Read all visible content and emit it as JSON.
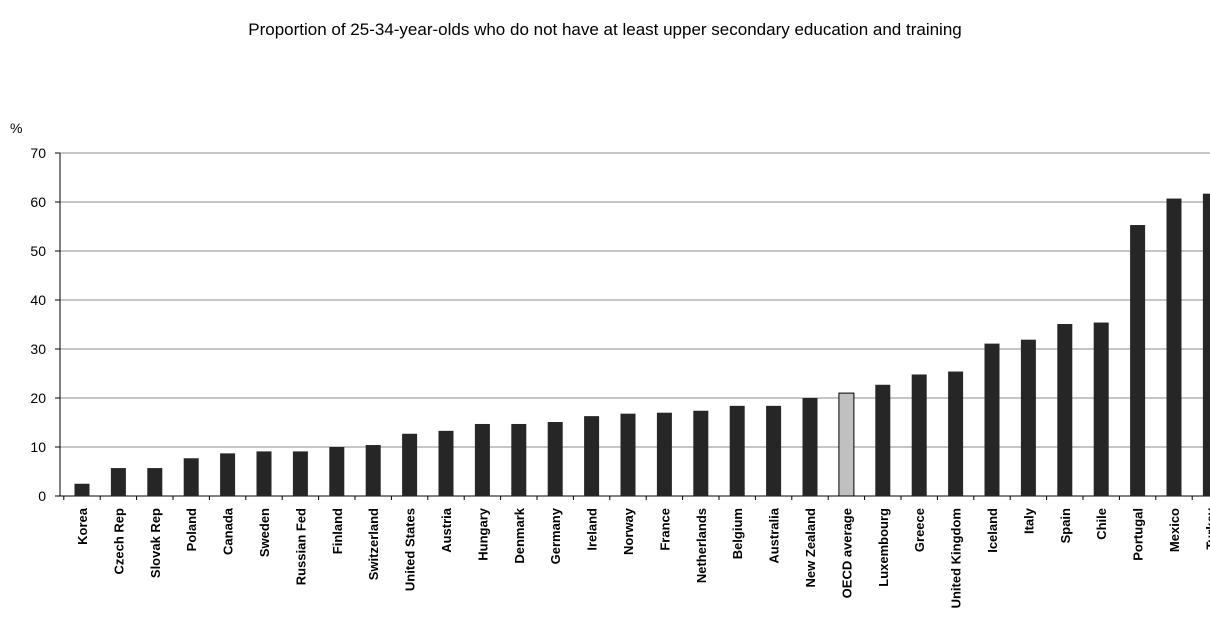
{
  "chart_data": {
    "type": "bar",
    "title": "Proportion of 25-34-year-olds who do not have at least upper secondary education and training",
    "ylabel": "%",
    "ylim": [
      0,
      70
    ],
    "yticks": [
      0,
      10,
      20,
      30,
      40,
      50,
      60,
      70
    ],
    "grid": true,
    "categories": [
      "Korea",
      "Czech Rep",
      "Slovak Rep",
      "Poland",
      "Canada",
      "Sweden",
      "Russian Fed",
      "Finland",
      "Switzerland",
      "United States",
      "Austria",
      "Hungary",
      "Denmark",
      "Germany",
      "Ireland",
      "Norway",
      "France",
      "Netherlands",
      "Belgium",
      "Australia",
      "New Zealand",
      "OECD average",
      "Luxembourg",
      "Greece",
      "United Kingdom",
      "Iceland",
      "Italy",
      "Spain",
      "Chile",
      "Portugal",
      "Mexico",
      "Turkey"
    ],
    "values": [
      2.5,
      5.7,
      5.7,
      7.7,
      8.7,
      9.1,
      9.1,
      10.0,
      10.4,
      12.7,
      13.3,
      14.7,
      14.7,
      15.1,
      16.3,
      16.8,
      17.0,
      17.4,
      18.4,
      18.4,
      20.0,
      21.0,
      22.7,
      24.8,
      25.4,
      31.1,
      31.9,
      35.1,
      35.4,
      55.3,
      60.7,
      61.7
    ],
    "bar_color": "#262626",
    "highlight_category": "OECD average",
    "highlight_color": "#c0c0c0"
  }
}
